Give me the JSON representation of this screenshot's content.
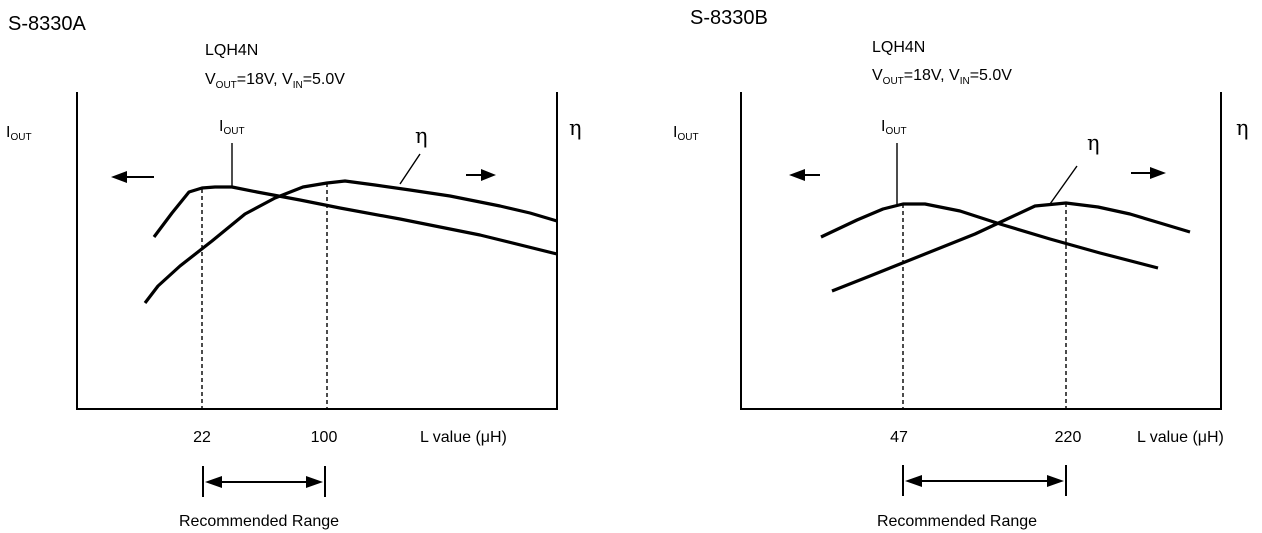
{
  "chart_data": [
    {
      "type": "line",
      "title": "S-8330A",
      "subtitle_line1": "LQH4N",
      "condition": {
        "vout_sym": "V",
        "vout_sub": "OUT",
        "vout_val": "=18V, ",
        "vin_sym": "V",
        "vin_sub": "IN",
        "vin_val": "=5.0V"
      },
      "left_axis": {
        "sym": "I",
        "sub": "OUT"
      },
      "right_axis": "η",
      "xlabel": "L value (μH)",
      "ticks": [
        "22",
        "100"
      ],
      "range_label": "Recommended Range",
      "series": [
        {
          "name": "IOUT",
          "label_sym": "I",
          "label_sub": "OUT"
        },
        {
          "name": "η",
          "label": "η"
        }
      ]
    },
    {
      "type": "line",
      "title": "S-8330B",
      "subtitle_line1": "LQH4N",
      "condition": {
        "vout_sym": "V",
        "vout_sub": "OUT",
        "vout_val": "=18V, ",
        "vin_sym": "V",
        "vin_sub": "IN",
        "vin_val": "=5.0V"
      },
      "left_axis": {
        "sym": "I",
        "sub": "OUT"
      },
      "right_axis": "η",
      "xlabel": "L value (μH)",
      "ticks": [
        "47",
        "220"
      ],
      "range_label": "Recommended Range",
      "series": [
        {
          "name": "IOUT",
          "label_sym": "I",
          "label_sub": "OUT"
        },
        {
          "name": "η",
          "label": "η"
        }
      ]
    }
  ]
}
